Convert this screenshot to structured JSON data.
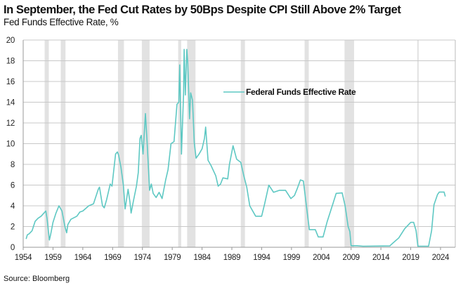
{
  "title": "In September, the Fed Cut Rates by 50Bps Despite CPI Still Above 2% Target",
  "subtitle": "Fed Funds Effective Rate, %",
  "source": "Source: Bloomberg",
  "chart_data": {
    "type": "line",
    "title": "In September, the Fed Cut Rates by 50Bps Despite CPI Still Above 2% Target",
    "ylabel": "Fed Funds Effective Rate, %",
    "xlim": [
      1954,
      2026.5
    ],
    "ylim": [
      0,
      20
    ],
    "yticks": [
      0,
      2,
      4,
      6,
      8,
      10,
      12,
      14,
      16,
      18,
      20
    ],
    "xticks": [
      1954,
      1959,
      1964,
      1969,
      1974,
      1979,
      1984,
      1989,
      1994,
      1999,
      2004,
      2009,
      2014,
      2019,
      2024
    ],
    "grid": "horizontal",
    "legend_placement": "center",
    "colors": {
      "line": "#5ec8c3",
      "recession": "#e2e2e2",
      "grid": "#c8c8c8"
    },
    "recession_shading": [
      [
        1957.6,
        1958.3
      ],
      [
        1960.3,
        1961.1
      ],
      [
        1969.9,
        1970.9
      ],
      [
        1973.9,
        1975.2
      ],
      [
        1980.0,
        1980.5
      ],
      [
        1981.5,
        1982.9
      ],
      [
        1990.5,
        1991.2
      ],
      [
        2001.2,
        2001.9
      ],
      [
        2007.9,
        2009.5
      ],
      [
        2020.1,
        2020.3
      ]
    ],
    "series": [
      {
        "name": "Federal Funds Effective Rate",
        "x": [
          1954.5,
          1954.7,
          1955,
          1955.5,
          1956,
          1956.5,
          1957,
          1957.8,
          1958,
          1958.4,
          1958.6,
          1959,
          1959.5,
          1960,
          1960.5,
          1961,
          1961.3,
          1961.5,
          1962,
          1963,
          1963.5,
          1964,
          1965,
          1965.8,
          1966.6,
          1966.8,
          1967.3,
          1967.6,
          1968,
          1968.6,
          1968.9,
          1969.5,
          1969.8,
          1970,
          1970.4,
          1970.8,
          1971.1,
          1971.6,
          1971.9,
          1972.1,
          1972.5,
          1973,
          1973.3,
          1973.6,
          1973.8,
          1974.1,
          1974.5,
          1974.8,
          1975.2,
          1975.5,
          1975.8,
          1976.3,
          1976.8,
          1977.3,
          1977.9,
          1978.3,
          1978.8,
          1979.3,
          1979.8,
          1980.1,
          1980.25,
          1980.55,
          1980.9,
          1981.0,
          1981.2,
          1981.45,
          1981.6,
          1981.9,
          1982.1,
          1982.4,
          1982.7,
          1983.0,
          1983.5,
          1984.0,
          1984.4,
          1984.6,
          1985.0,
          1985.5,
          1986.3,
          1986.7,
          1987.1,
          1987.5,
          1988.3,
          1988.6,
          1989.2,
          1989.8,
          1990.5,
          1991.0,
          1991.5,
          1992,
          1993,
          1994,
          1994.5,
          1995.2,
          1996,
          1997,
          1998,
          1998.9,
          1999.5,
          2000.0,
          2000.5,
          2001.0,
          2001.5,
          2002,
          2003,
          2003.5,
          2004.3,
          2005,
          2006,
          2006.5,
          2007.5,
          2008.0,
          2008.5,
          2008.8,
          2009,
          2010,
          2011,
          2015.5,
          2016,
          2017,
          2018,
          2019,
          2019.5,
          2019.9,
          2020.2,
          2022,
          2022.5,
          2022.9,
          2023.5,
          2023.8,
          2024.6,
          2024.8
        ],
        "values": [
          0.8,
          1.2,
          1.3,
          1.6,
          2.5,
          2.8,
          3.0,
          3.5,
          2.8,
          0.7,
          1.2,
          2.4,
          3.3,
          4.0,
          3.5,
          2.0,
          1.4,
          2.2,
          2.7,
          3.0,
          3.4,
          3.5,
          4.0,
          4.2,
          5.6,
          5.8,
          4.0,
          3.8,
          4.6,
          6.1,
          5.9,
          9.0,
          9.2,
          8.9,
          7.7,
          6.0,
          3.7,
          5.6,
          4.4,
          3.3,
          4.5,
          5.9,
          7.2,
          10.5,
          10.8,
          9.0,
          12.9,
          10.0,
          5.5,
          6.1,
          5.2,
          4.8,
          5.3,
          4.7,
          6.5,
          7.5,
          10.0,
          10.2,
          13.8,
          14.0,
          17.6,
          9.0,
          14.9,
          19.1,
          14.7,
          19.1,
          17.8,
          12.4,
          14.9,
          14.2,
          10.1,
          8.6,
          9.0,
          9.5,
          10.5,
          11.6,
          8.4,
          7.9,
          6.9,
          5.9,
          6.1,
          6.7,
          6.6,
          8.0,
          9.8,
          8.5,
          8.2,
          6.9,
          5.8,
          4.0,
          3.0,
          3.0,
          4.2,
          6.0,
          5.3,
          5.5,
          5.5,
          4.7,
          5.0,
          5.7,
          6.5,
          6.4,
          4.0,
          1.7,
          1.7,
          1.0,
          1.0,
          2.5,
          4.3,
          5.2,
          5.25,
          4.0,
          2.0,
          1.5,
          0.15,
          0.15,
          0.1,
          0.13,
          0.4,
          0.9,
          1.8,
          2.4,
          2.4,
          1.6,
          0.1,
          0.1,
          1.6,
          4.1,
          5.1,
          5.33,
          5.33,
          4.9
        ]
      }
    ]
  }
}
